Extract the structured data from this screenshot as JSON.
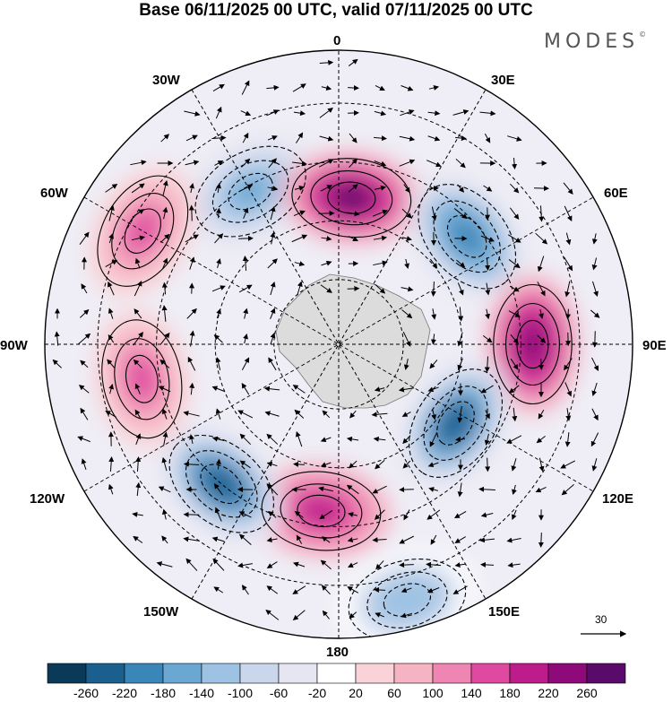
{
  "header": {
    "title": "Base 06/11/2025 00 UTC, valid 07/11/2025 00 UTC",
    "brand": "MODES",
    "brand_mark": "©"
  },
  "map": {
    "projection": "polar-stereographic-south",
    "longitude_labels": {
      "n0": "0",
      "e30": "30E",
      "e60": "60E",
      "e90": "90E",
      "e120": "120E",
      "e150": "150E",
      "s180": "180",
      "w150": "150W",
      "w120": "120W",
      "w90": "90W",
      "w60": "60W",
      "w30": "30W"
    },
    "anomaly_centers": [
      {
        "sign": "negative",
        "value": -200,
        "bearing_deg": -30,
        "radial": 0.6
      },
      {
        "sign": "positive",
        "value": 240,
        "bearing_deg": 5,
        "radial": 0.5
      },
      {
        "sign": "negative",
        "value": -220,
        "bearing_deg": 50,
        "radial": 0.57
      },
      {
        "sign": "positive",
        "value": 220,
        "bearing_deg": 90,
        "radial": 0.66
      },
      {
        "sign": "negative",
        "value": -260,
        "bearing_deg": 124,
        "radial": 0.48
      },
      {
        "sign": "negative",
        "value": -160,
        "bearing_deg": 165,
        "radial": 0.9
      },
      {
        "sign": "positive",
        "value": 180,
        "bearing_deg": 186,
        "radial": 0.57
      },
      {
        "sign": "negative",
        "value": -280,
        "bearing_deg": 220,
        "radial": 0.62
      },
      {
        "sign": "positive",
        "value": 140,
        "bearing_deg": 260,
        "radial": 0.68
      },
      {
        "sign": "positive",
        "value": 120,
        "bearing_deg": 300,
        "radial": 0.77
      }
    ],
    "reference_vector": {
      "value": "30"
    }
  },
  "colorbar": {
    "colors": [
      "#0b3a59",
      "#1a5f8e",
      "#3a86b9",
      "#6aa8d3",
      "#9ec2e3",
      "#c9d6ec",
      "#e6e5f2",
      "#ffffff",
      "#f9d3d7",
      "#f5b3c3",
      "#ee85b2",
      "#df4aa0",
      "#bd1d8a",
      "#8e0a7a",
      "#5a0a6a"
    ],
    "ticks": [
      "-260",
      "-220",
      "-180",
      "-140",
      "-100",
      "-60",
      "-20",
      "20",
      "60",
      "100",
      "140",
      "180",
      "220",
      "260"
    ]
  }
}
